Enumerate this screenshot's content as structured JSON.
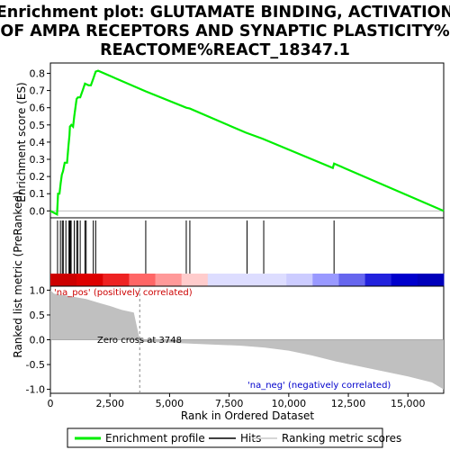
{
  "chart_data": {
    "type": "line",
    "title_lines": [
      "Enrichment plot: GLUTAMATE BINDING, ACTIVATION",
      "OF AMPA RECEPTORS AND SYNAPTIC PLASTICITY%",
      "REACTOME%REACT_18347.1"
    ],
    "es_panel": {
      "ylabel": "Enrichment score (ES)",
      "ylim": [
        -0.04,
        0.86
      ],
      "yticks": [
        "0.0",
        "0.1",
        "0.2",
        "0.3",
        "0.4",
        "0.5",
        "0.6",
        "0.7",
        "0.8"
      ],
      "series": {
        "name": "Enrichment profile",
        "color": "#00ee00",
        "points": [
          [
            0,
            0.0
          ],
          [
            280,
            -0.02
          ],
          [
            320,
            0.1
          ],
          [
            380,
            0.1
          ],
          [
            430,
            0.16
          ],
          [
            480,
            0.21
          ],
          [
            530,
            0.23
          ],
          [
            600,
            0.28
          ],
          [
            700,
            0.28
          ],
          [
            760,
            0.38
          ],
          [
            800,
            0.44
          ],
          [
            820,
            0.49
          ],
          [
            880,
            0.5
          ],
          [
            950,
            0.49
          ],
          [
            1000,
            0.55
          ],
          [
            1050,
            0.6
          ],
          [
            1100,
            0.65
          ],
          [
            1150,
            0.66
          ],
          [
            1250,
            0.66
          ],
          [
            1350,
            0.7
          ],
          [
            1450,
            0.74
          ],
          [
            1600,
            0.73
          ],
          [
            1700,
            0.73
          ],
          [
            1800,
            0.77
          ],
          [
            1900,
            0.81
          ],
          [
            2000,
            0.815
          ],
          [
            4000,
            0.695
          ],
          [
            5700,
            0.6
          ],
          [
            5850,
            0.595
          ],
          [
            8200,
            0.455
          ],
          [
            8900,
            0.42
          ],
          [
            11850,
            0.25
          ],
          [
            11900,
            0.275
          ],
          [
            16500,
            0.0
          ]
        ]
      }
    },
    "hits": [
      300,
      420,
      500,
      540,
      650,
      780,
      800,
      830,
      870,
      1000,
      1100,
      1150,
      1250,
      1450,
      1500,
      1800,
      1900,
      4000,
      5700,
      5850,
      8250,
      8950,
      11900
    ],
    "ranking_panel": {
      "ylabel": "Ranked list metric (PreRanked)",
      "ylim": [
        -1.08,
        1.08
      ],
      "yticks": [
        "1.0",
        "0.5",
        "0.0",
        "-0.5",
        "-1.0"
      ],
      "zero_cross_label": "Zero cross at 3748",
      "zero_cross": 3748,
      "pos_label": "'na_pos' (positively correlated)",
      "neg_label": "'na_neg' (negatively correlated)",
      "profile": [
        [
          0,
          1.0
        ],
        [
          150,
          0.93
        ],
        [
          400,
          0.91
        ],
        [
          800,
          0.88
        ],
        [
          1500,
          0.82
        ],
        [
          2000,
          0.75
        ],
        [
          2500,
          0.68
        ],
        [
          3000,
          0.6
        ],
        [
          3500,
          0.55
        ],
        [
          3748,
          0.0
        ],
        [
          3760,
          -0.04
        ],
        [
          5000,
          -0.06
        ],
        [
          6500,
          -0.09
        ],
        [
          8000,
          -0.12
        ],
        [
          9000,
          -0.16
        ],
        [
          10000,
          -0.22
        ],
        [
          11000,
          -0.32
        ],
        [
          12000,
          -0.44
        ],
        [
          13000,
          -0.54
        ],
        [
          14000,
          -0.64
        ],
        [
          15000,
          -0.74
        ],
        [
          16000,
          -0.86
        ],
        [
          16500,
          -1.0
        ]
      ],
      "gradient_bar": [
        "#cc0000",
        "#dd0000",
        "#ee2222",
        "#ff6666",
        "#ff9999",
        "#ffcccc",
        "#ddddff",
        "#ddddff",
        "#ddddff",
        "#ccccff",
        "#9999ff",
        "#6666ee",
        "#2222dd",
        "#0000cc",
        "#0000bb"
      ]
    },
    "x_axis": {
      "xlabel": "Rank in Ordered Dataset",
      "xlim": [
        0,
        16500
      ],
      "xticks": [
        "0",
        "2,500",
        "5,000",
        "7,500",
        "10,000",
        "12,500",
        "15,000"
      ]
    },
    "legend": {
      "position": "bottom",
      "entries": [
        "Enrichment profile",
        "Hits",
        "Ranking metric scores"
      ]
    }
  }
}
